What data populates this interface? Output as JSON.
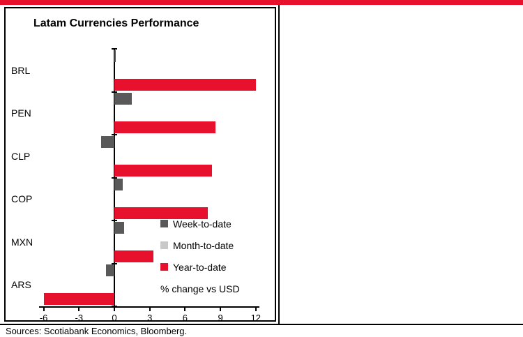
{
  "page": {
    "sources": "Sources: Scotiabank Economics, Bloomberg."
  },
  "colors": {
    "accent_red": "#E8112D",
    "week_gray": "#595959",
    "month_gray": "#C9C9CB",
    "axis_black": "#000000"
  },
  "chart_data": {
    "type": "bar",
    "orientation": "horizontal",
    "title": "Latam Currencies Performance",
    "note": "% change vs USD",
    "categories": [
      "BRL",
      "PEN",
      "CLP",
      "COP",
      "MXN",
      "ARS"
    ],
    "series": [
      {
        "name": "Week-to-date",
        "color": "#595959",
        "values": [
          0.1,
          1.5,
          -1.1,
          0.7,
          0.8,
          -0.7
        ]
      },
      {
        "name": "Month-to-date",
        "color": "#C9C9CB",
        "values": [
          0,
          0,
          0,
          0,
          0,
          0
        ]
      },
      {
        "name": "Year-to-date",
        "color": "#E8112D",
        "values": [
          12.0,
          8.6,
          8.3,
          7.9,
          3.3,
          -6.0
        ]
      }
    ],
    "xticks": [
      -6,
      -3,
      0,
      3,
      6,
      9,
      12
    ],
    "xlim": [
      -6.3,
      12.3
    ],
    "grid": false,
    "legend_position": "inside-right-bottom"
  }
}
